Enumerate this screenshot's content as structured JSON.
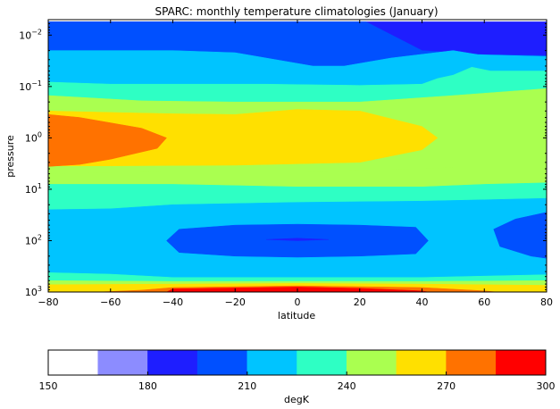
{
  "chart_data": {
    "type": "contourf",
    "title": "SPARC: monthly temperature climatologies (January)",
    "xlabel": "latitude",
    "ylabel": "pressure",
    "x_ticks": [
      {
        "value": -80,
        "label": "−80"
      },
      {
        "value": -60,
        "label": "−60"
      },
      {
        "value": -40,
        "label": "−40"
      },
      {
        "value": -20,
        "label": "−20"
      },
      {
        "value": 0,
        "label": "0"
      },
      {
        "value": 20,
        "label": "20"
      },
      {
        "value": 40,
        "label": "40"
      },
      {
        "value": 60,
        "label": "60"
      },
      {
        "value": 80,
        "label": "80"
      }
    ],
    "xlim": [
      -80,
      80
    ],
    "y_scale": "log",
    "y_inverted": true,
    "ylim": [
      1000,
      0.005
    ],
    "y_ticks": [
      {
        "value": 0.01,
        "base": "10",
        "exp": "−2"
      },
      {
        "value": 0.1,
        "base": "10",
        "exp": "−1"
      },
      {
        "value": 1,
        "base": "10",
        "exp": "0"
      },
      {
        "value": 10,
        "base": "10",
        "exp": "1"
      },
      {
        "value": 100,
        "base": "10",
        "exp": "2"
      },
      {
        "value": 1000,
        "base": "10",
        "exp": "3"
      }
    ],
    "colorbar": {
      "label": "degK",
      "levels": [
        150,
        165,
        180,
        195,
        210,
        225,
        240,
        255,
        270,
        285,
        300
      ],
      "tick_labels": [
        {
          "value": 150,
          "label": "150"
        },
        {
          "value": 180,
          "label": "180"
        },
        {
          "value": 210,
          "label": "210"
        },
        {
          "value": 240,
          "label": "240"
        },
        {
          "value": 270,
          "label": "270"
        },
        {
          "value": 300,
          "label": "300"
        }
      ],
      "colors": [
        "#ffffff",
        "#8c8cff",
        "#1e1eff",
        "#0050ff",
        "#00c4ff",
        "#2effc4",
        "#aaff50",
        "#ffe000",
        "#ff7200",
        "#ff0000"
      ]
    },
    "bands": [
      {
        "level": 0,
        "color": "#ffffff",
        "pts": [
          [
            -80,
            0.0055
          ],
          [
            -45,
            0.0055
          ],
          [
            -50,
            0.006
          ],
          [
            -58,
            0.011
          ],
          [
            -68,
            0.02
          ],
          [
            -80,
            0.02
          ]
        ]
      },
      {
        "level": 1,
        "color": "#8c8cff",
        "pts": [
          [
            -80,
            0.0055
          ],
          [
            -33,
            0.0055
          ],
          [
            -40,
            0.009
          ],
          [
            -50,
            0.02
          ],
          [
            -60,
            0.028
          ],
          [
            -80,
            0.03
          ]
        ]
      },
      {
        "level": 2,
        "color": "#1e1eff",
        "pts": [
          [
            -80,
            0.0055
          ],
          [
            80,
            0.0055
          ],
          [
            80,
            0.03
          ],
          [
            60,
            0.04
          ],
          [
            45,
            0.045
          ],
          [
            30,
            0.048
          ],
          [
            0,
            0.052
          ],
          [
            -40,
            0.06
          ],
          [
            -80,
            0.068
          ]
        ]
      },
      {
        "level": 3,
        "color": "#0050ff",
        "pts": [
          [
            -80,
            0.0055
          ],
          [
            0,
            0.0055
          ],
          [
            22,
            0.0055
          ],
          [
            40,
            0.02
          ],
          [
            60,
            0.024
          ],
          [
            80,
            0.025
          ],
          [
            80,
            1000
          ],
          [
            -80,
            1000
          ]
        ]
      },
      {
        "level": 4,
        "color": "#00c4ff",
        "pts": [
          [
            -80,
            0.02
          ],
          [
            -40,
            0.02
          ],
          [
            -20,
            0.022
          ],
          [
            5,
            0.04
          ],
          [
            15,
            0.04
          ],
          [
            30,
            0.028
          ],
          [
            50,
            0.02
          ],
          [
            58,
            0.024
          ],
          [
            80,
            0.026
          ],
          [
            80,
            1000
          ],
          [
            -80,
            1000
          ]
        ]
      },
      {
        "level": 5,
        "color": "#2effc4",
        "pts": [
          [
            -80,
            0.082
          ],
          [
            -60,
            0.09
          ],
          [
            -40,
            0.09
          ],
          [
            -10,
            0.09
          ],
          [
            20,
            0.095
          ],
          [
            40,
            0.09
          ],
          [
            45,
            0.07
          ],
          [
            50,
            0.06
          ],
          [
            56,
            0.042
          ],
          [
            62,
            0.05
          ],
          [
            80,
            0.05
          ],
          [
            80,
            1000
          ],
          [
            -80,
            1000
          ]
        ]
      },
      {
        "level": 6,
        "color": "#aaff50",
        "pts": [
          [
            -80,
            0.15
          ],
          [
            -50,
            0.19
          ],
          [
            -20,
            0.2
          ],
          [
            20,
            0.2
          ],
          [
            50,
            0.15
          ],
          [
            80,
            0.11
          ],
          [
            80,
            1000
          ],
          [
            -80,
            1000
          ]
        ]
      },
      {
        "level": 7,
        "color": "#ffe000",
        "pts": [
          [
            -80,
            0.3
          ],
          [
            -60,
            0.32
          ],
          [
            -40,
            0.34
          ],
          [
            -20,
            0.35
          ],
          [
            0,
            0.28
          ],
          [
            20,
            0.3
          ],
          [
            40,
            0.6
          ],
          [
            45,
            1.0
          ],
          [
            40,
            1.7
          ],
          [
            20,
            3.0
          ],
          [
            -20,
            3.4
          ],
          [
            -60,
            3.5
          ],
          [
            -80,
            3.5
          ],
          [
            -80,
            1000
          ]
        ]
      },
      {
        "level": 8,
        "color": "#ff7200",
        "pts": [
          [
            -80,
            0.35
          ],
          [
            -70,
            0.4
          ],
          [
            -50,
            0.65
          ],
          [
            -42,
            1.0
          ],
          [
            -45,
            1.6
          ],
          [
            -60,
            2.6
          ],
          [
            -70,
            3.3
          ],
          [
            -80,
            3.6
          ]
        ]
      },
      {
        "level": 6,
        "color": "#aaff50",
        "pts": [
          [
            -80,
            5.0
          ],
          [
            -40,
            4.5
          ],
          [
            0,
            4.5
          ],
          [
            40,
            4.0
          ],
          [
            80,
            3.0
          ],
          [
            80,
            1000
          ],
          [
            -80,
            1000
          ]
        ]
      },
      {
        "level": 5,
        "color": "#2effc4",
        "pts": [
          [
            -80,
            8.0
          ],
          [
            -40,
            8.0
          ],
          [
            0,
            9.0
          ],
          [
            40,
            9.0
          ],
          [
            60,
            8.0
          ],
          [
            80,
            7.5
          ],
          [
            80,
            1000
          ],
          [
            -80,
            1000
          ]
        ]
      },
      {
        "level": 4,
        "color": "#00c4ff",
        "pts": [
          [
            -80,
            25
          ],
          [
            -60,
            24
          ],
          [
            -40,
            20
          ],
          [
            0,
            18
          ],
          [
            40,
            17
          ],
          [
            60,
            16
          ],
          [
            80,
            15
          ],
          [
            80,
            1000
          ],
          [
            -80,
            1000
          ]
        ]
      },
      {
        "level": 3,
        "color": "#0050ff",
        "pts": [
          [
            -38,
            60
          ],
          [
            -20,
            50
          ],
          [
            0,
            48
          ],
          [
            20,
            50
          ],
          [
            38,
            55
          ],
          [
            42,
            100
          ],
          [
            38,
            180
          ],
          [
            20,
            200
          ],
          [
            0,
            210
          ],
          [
            -20,
            200
          ],
          [
            -38,
            170
          ],
          [
            -42,
            100
          ]
        ]
      },
      {
        "level": 2,
        "color": "#1e1eff",
        "pts": [
          [
            -10,
            95
          ],
          [
            0,
            90
          ],
          [
            10,
            95
          ],
          [
            0,
            100
          ]
        ]
      },
      {
        "level": 3,
        "color": "#0050ff",
        "pts": [
          [
            80,
            28
          ],
          [
            70,
            38
          ],
          [
            63,
            60
          ],
          [
            65,
            130
          ],
          [
            75,
            200
          ],
          [
            80,
            220
          ]
        ]
      },
      {
        "level": 4,
        "color": "#00c4ff",
        "pts": [
          [
            -80,
            300
          ],
          [
            -40,
            380
          ],
          [
            0,
            390
          ],
          [
            40,
            380
          ],
          [
            80,
            330
          ],
          [
            80,
            1000
          ],
          [
            -80,
            1000
          ]
        ]
      },
      {
        "level": 5,
        "color": "#2effc4",
        "pts": [
          [
            -80,
            420
          ],
          [
            -60,
            450
          ],
          [
            -40,
            520
          ],
          [
            0,
            520
          ],
          [
            40,
            520
          ],
          [
            80,
            460
          ],
          [
            80,
            1000
          ],
          [
            -80,
            1000
          ]
        ]
      },
      {
        "level": 6,
        "color": "#aaff50",
        "pts": [
          [
            -80,
            600
          ],
          [
            -40,
            620
          ],
          [
            0,
            620
          ],
          [
            40,
            620
          ],
          [
            80,
            600
          ],
          [
            80,
            1000
          ],
          [
            -80,
            1000
          ]
        ]
      },
      {
        "level": 7,
        "color": "#ffe000",
        "pts": [
          [
            -80,
            720
          ],
          [
            -40,
            700
          ],
          [
            0,
            680
          ],
          [
            40,
            700
          ],
          [
            80,
            740
          ],
          [
            80,
            1000
          ],
          [
            -80,
            1000
          ]
        ]
      },
      {
        "level": 8,
        "color": "#ff7200",
        "pts": [
          [
            -64,
            1000
          ],
          [
            -50,
            920
          ],
          [
            -40,
            820
          ],
          [
            0,
            760
          ],
          [
            40,
            820
          ],
          [
            60,
            950
          ],
          [
            64,
            1000
          ]
        ]
      },
      {
        "level": 9,
        "color": "#ff0000",
        "pts": [
          [
            -42,
            1000
          ],
          [
            -40,
            870
          ],
          [
            0,
            800
          ],
          [
            20,
            850
          ],
          [
            40,
            950
          ],
          [
            42,
            1000
          ]
        ]
      }
    ]
  }
}
